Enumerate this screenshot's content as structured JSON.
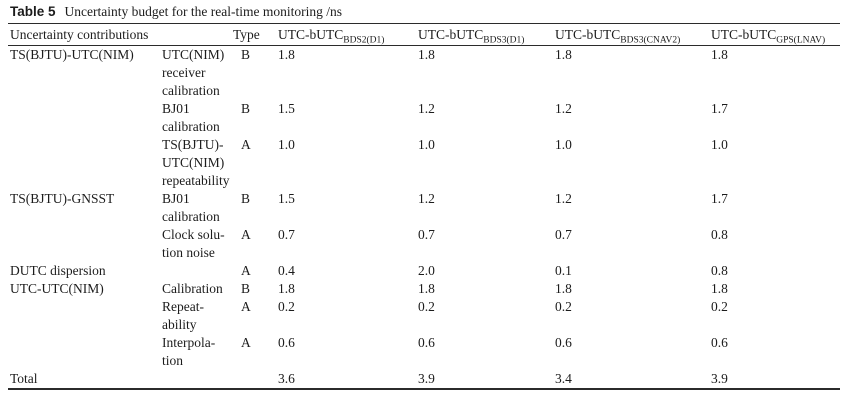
{
  "caption": {
    "label": "Table 5",
    "text": "Uncertainty budget for the real-time monitoring /ns"
  },
  "table": {
    "header": {
      "contributions": "Uncertainty contributions",
      "type": "Type",
      "value_cols": [
        {
          "main": "UTC-bUTC",
          "sub": "BDS2(D1)"
        },
        {
          "main": "UTC-bUTC",
          "sub": "BDS3(D1)"
        },
        {
          "main": "UTC-bUTC",
          "sub": "BDS3(CNAV2)"
        },
        {
          "main": "UTC-bUTC",
          "sub": "GPS(LNAV)"
        }
      ]
    },
    "rows": [
      {
        "group": "TS(BJTU)-UTC(NIM)",
        "item": "UTC(NIM)\nreceiver\ncalibration",
        "type": "B",
        "values": [
          "1.8",
          "1.8",
          "1.8",
          "1.8"
        ]
      },
      {
        "group": "",
        "item": "BJ01\ncalibration",
        "type": "B",
        "values": [
          "1.5",
          "1.2",
          "1.2",
          "1.7"
        ]
      },
      {
        "group": "",
        "item": "TS(BJTU)-\nUTC(NIM)\nrepeatability",
        "type": "A",
        "values": [
          "1.0",
          "1.0",
          "1.0",
          "1.0"
        ]
      },
      {
        "group": "TS(BJTU)-GNSST",
        "item": "BJ01\ncalibration",
        "type": "B",
        "values": [
          "1.5",
          "1.2",
          "1.2",
          "1.7"
        ]
      },
      {
        "group": "",
        "item": "Clock solu-\ntion noise",
        "type": "A",
        "values": [
          "0.7",
          "0.7",
          "0.7",
          "0.8"
        ]
      },
      {
        "group": "DUTC dispersion",
        "item": "",
        "type": "A",
        "values": [
          "0.4",
          "2.0",
          "0.1",
          "0.8"
        ]
      },
      {
        "group": "UTC-UTC(NIM)",
        "item": "Calibration",
        "type": "B",
        "values": [
          "1.8",
          "1.8",
          "1.8",
          "1.8"
        ]
      },
      {
        "group": "",
        "item": "Repeat-\nability",
        "type": "A",
        "values": [
          "0.2",
          "0.2",
          "0.2",
          "0.2"
        ]
      },
      {
        "group": "",
        "item": "Interpola-\ntion",
        "type": "A",
        "values": [
          "0.6",
          "0.6",
          "0.6",
          "0.6"
        ]
      },
      {
        "group": "Total",
        "item": "",
        "type": "",
        "values": [
          "3.6",
          "3.9",
          "3.4",
          "3.9"
        ]
      }
    ]
  }
}
